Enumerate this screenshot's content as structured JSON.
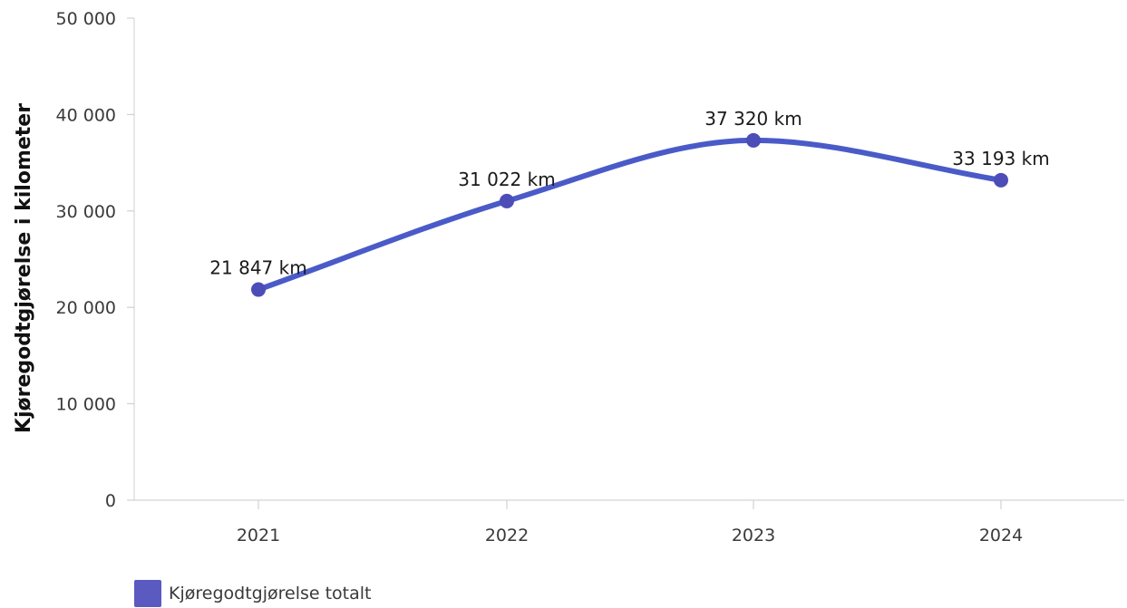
{
  "chart_data": {
    "type": "line",
    "categories": [
      "2021",
      "2022",
      "2023",
      "2024"
    ],
    "series": [
      {
        "name": "Kjøregodtgjørelse totalt",
        "values": [
          21847,
          31022,
          37320,
          33193
        ],
        "labels": [
          "21 847 km",
          "31 022 km",
          "37 320 km",
          "33 193 km"
        ],
        "color": "#4a5bc8",
        "marker_color": "#4d4db8"
      }
    ],
    "ylabel": "Kjøregodtgjørelse i kilometer",
    "ylim": [
      0,
      50000
    ],
    "yticks": [
      0,
      10000,
      20000,
      30000,
      40000,
      50000
    ],
    "ytick_labels": [
      "0",
      "10 000",
      "20 000",
      "30 000",
      "40 000",
      "50 000"
    ],
    "smooth": true,
    "grid": false,
    "legend_position": "bottom-left",
    "legend_color": "#5a5ac0"
  }
}
